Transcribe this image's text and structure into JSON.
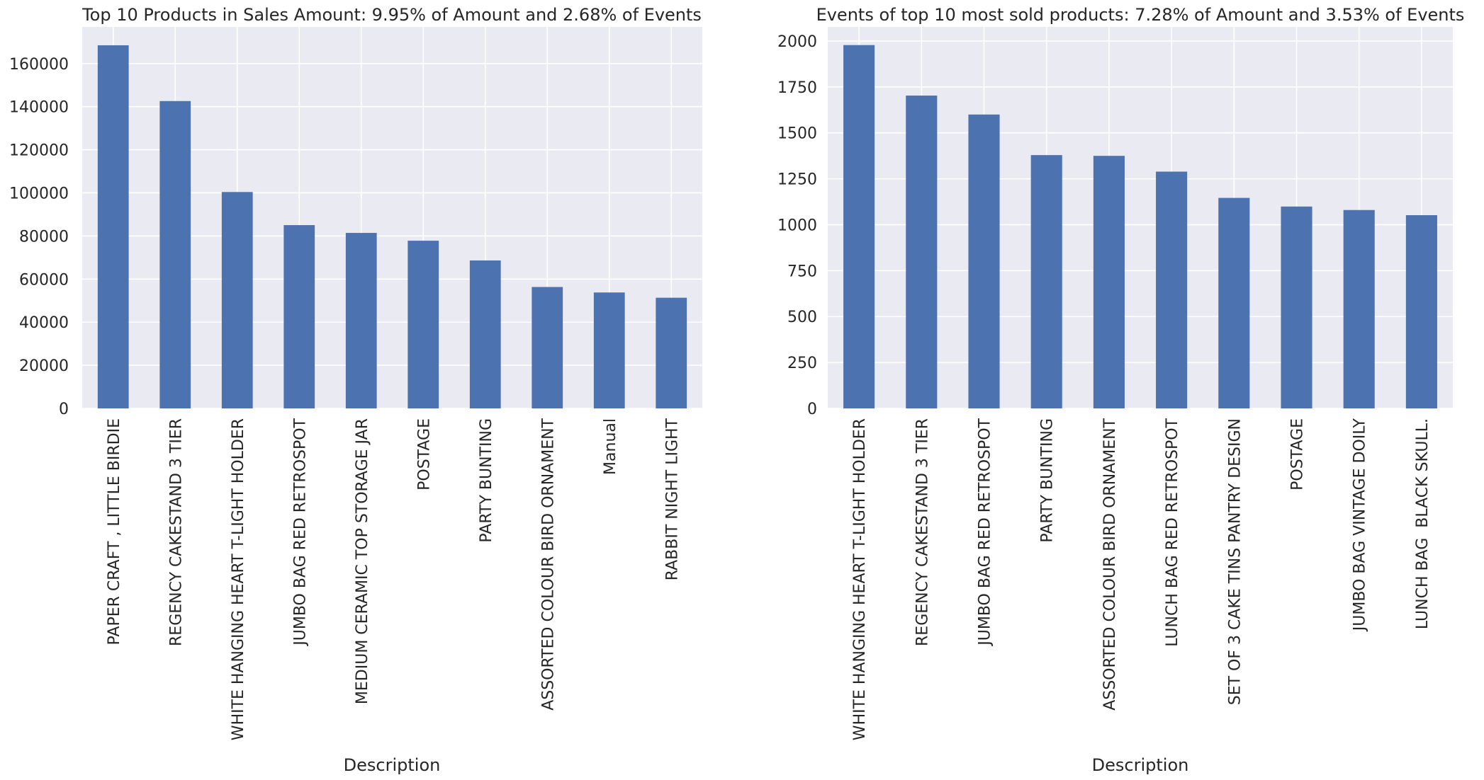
{
  "colors": {
    "bar": "#4c72b0",
    "plot_background": "#eaeaf2",
    "grid": "#ffffff",
    "text": "#262626"
  },
  "chart_data": [
    {
      "type": "bar",
      "title": "Top 10 Products in Sales Amount: 9.95% of Amount and 2.68% of Events",
      "xlabel": "Description",
      "ylabel": "",
      "categories": [
        "PAPER CRAFT , LITTLE BIRDIE",
        "REGENCY CAKESTAND 3 TIER",
        "WHITE HANGING HEART T-LIGHT HOLDER",
        "JUMBO BAG RED RETROSPOT",
        "MEDIUM CERAMIC TOP STORAGE JAR",
        "POSTAGE",
        "PARTY BUNTING",
        "ASSORTED COLOUR BIRD ORNAMENT",
        "Manual",
        "RABBIT NIGHT LIGHT"
      ],
      "values": [
        168470,
        142590,
        100390,
        85040,
        81420,
        77800,
        68640,
        56330,
        53780,
        51350
      ],
      "ylim": [
        0,
        177000
      ],
      "yticks": [
        0,
        20000,
        40000,
        60000,
        80000,
        100000,
        120000,
        140000,
        160000
      ],
      "grid": true
    },
    {
      "type": "bar",
      "title": "Events of top 10 most sold products: 7.28% of Amount and 3.53% of Events",
      "xlabel": "Description",
      "ylabel": "",
      "categories": [
        "WHITE HANGING HEART T-LIGHT HOLDER",
        "REGENCY CAKESTAND 3 TIER",
        "JUMBO BAG RED RETROSPOT",
        "PARTY BUNTING",
        "ASSORTED COLOUR BIRD ORNAMENT",
        "LUNCH BAG RED RETROSPOT",
        "SET OF 3 CAKE TINS PANTRY DESIGN",
        "POSTAGE",
        "JUMBO BAG VINTAGE DOILY",
        "LUNCH BAG  BLACK SKULL."
      ],
      "values": [
        1978,
        1703,
        1600,
        1379,
        1375,
        1289,
        1146,
        1099,
        1080,
        1052
      ],
      "ylim": [
        0,
        2077
      ],
      "yticks": [
        0,
        250,
        500,
        750,
        1000,
        1250,
        1500,
        1750,
        2000
      ],
      "grid": true
    }
  ]
}
